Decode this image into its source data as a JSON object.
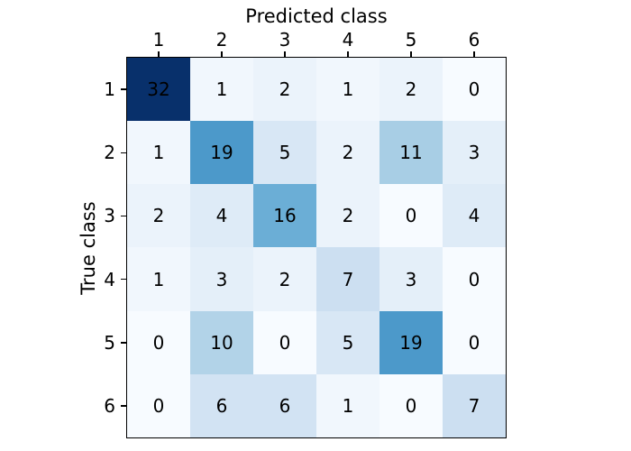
{
  "chart_data": {
    "type": "heatmap",
    "subtype": "confusion-matrix",
    "xlabel": "Predicted class",
    "ylabel": "True class",
    "xlabel_position": "top",
    "x_tick_labels": [
      "1",
      "2",
      "3",
      "4",
      "5",
      "6"
    ],
    "y_tick_labels": [
      "1",
      "2",
      "3",
      "4",
      "5",
      "6"
    ],
    "matrix": [
      [
        32,
        1,
        2,
        1,
        2,
        0
      ],
      [
        1,
        19,
        5,
        2,
        11,
        3
      ],
      [
        2,
        4,
        16,
        2,
        0,
        4
      ],
      [
        1,
        3,
        2,
        7,
        3,
        0
      ],
      [
        0,
        10,
        0,
        5,
        19,
        0
      ],
      [
        0,
        6,
        6,
        1,
        0,
        7
      ]
    ],
    "vmin": 0,
    "vmax": 32,
    "colormap": {
      "name": "Blues",
      "anchors": [
        [
          0.0,
          "#f7fbff"
        ],
        [
          0.125,
          "#deebf7"
        ],
        [
          0.25,
          "#c6dbef"
        ],
        [
          0.375,
          "#9ecae1"
        ],
        [
          0.5,
          "#6baed6"
        ],
        [
          0.625,
          "#4292c6"
        ],
        [
          0.75,
          "#2171b5"
        ],
        [
          0.875,
          "#08519c"
        ],
        [
          1.0,
          "#08306b"
        ]
      ]
    },
    "annotation_text_color": "#000000",
    "border_color": "#000000",
    "background_color": "#ffffff",
    "legend": "none",
    "grid": false,
    "ticks": "top-and-left"
  }
}
